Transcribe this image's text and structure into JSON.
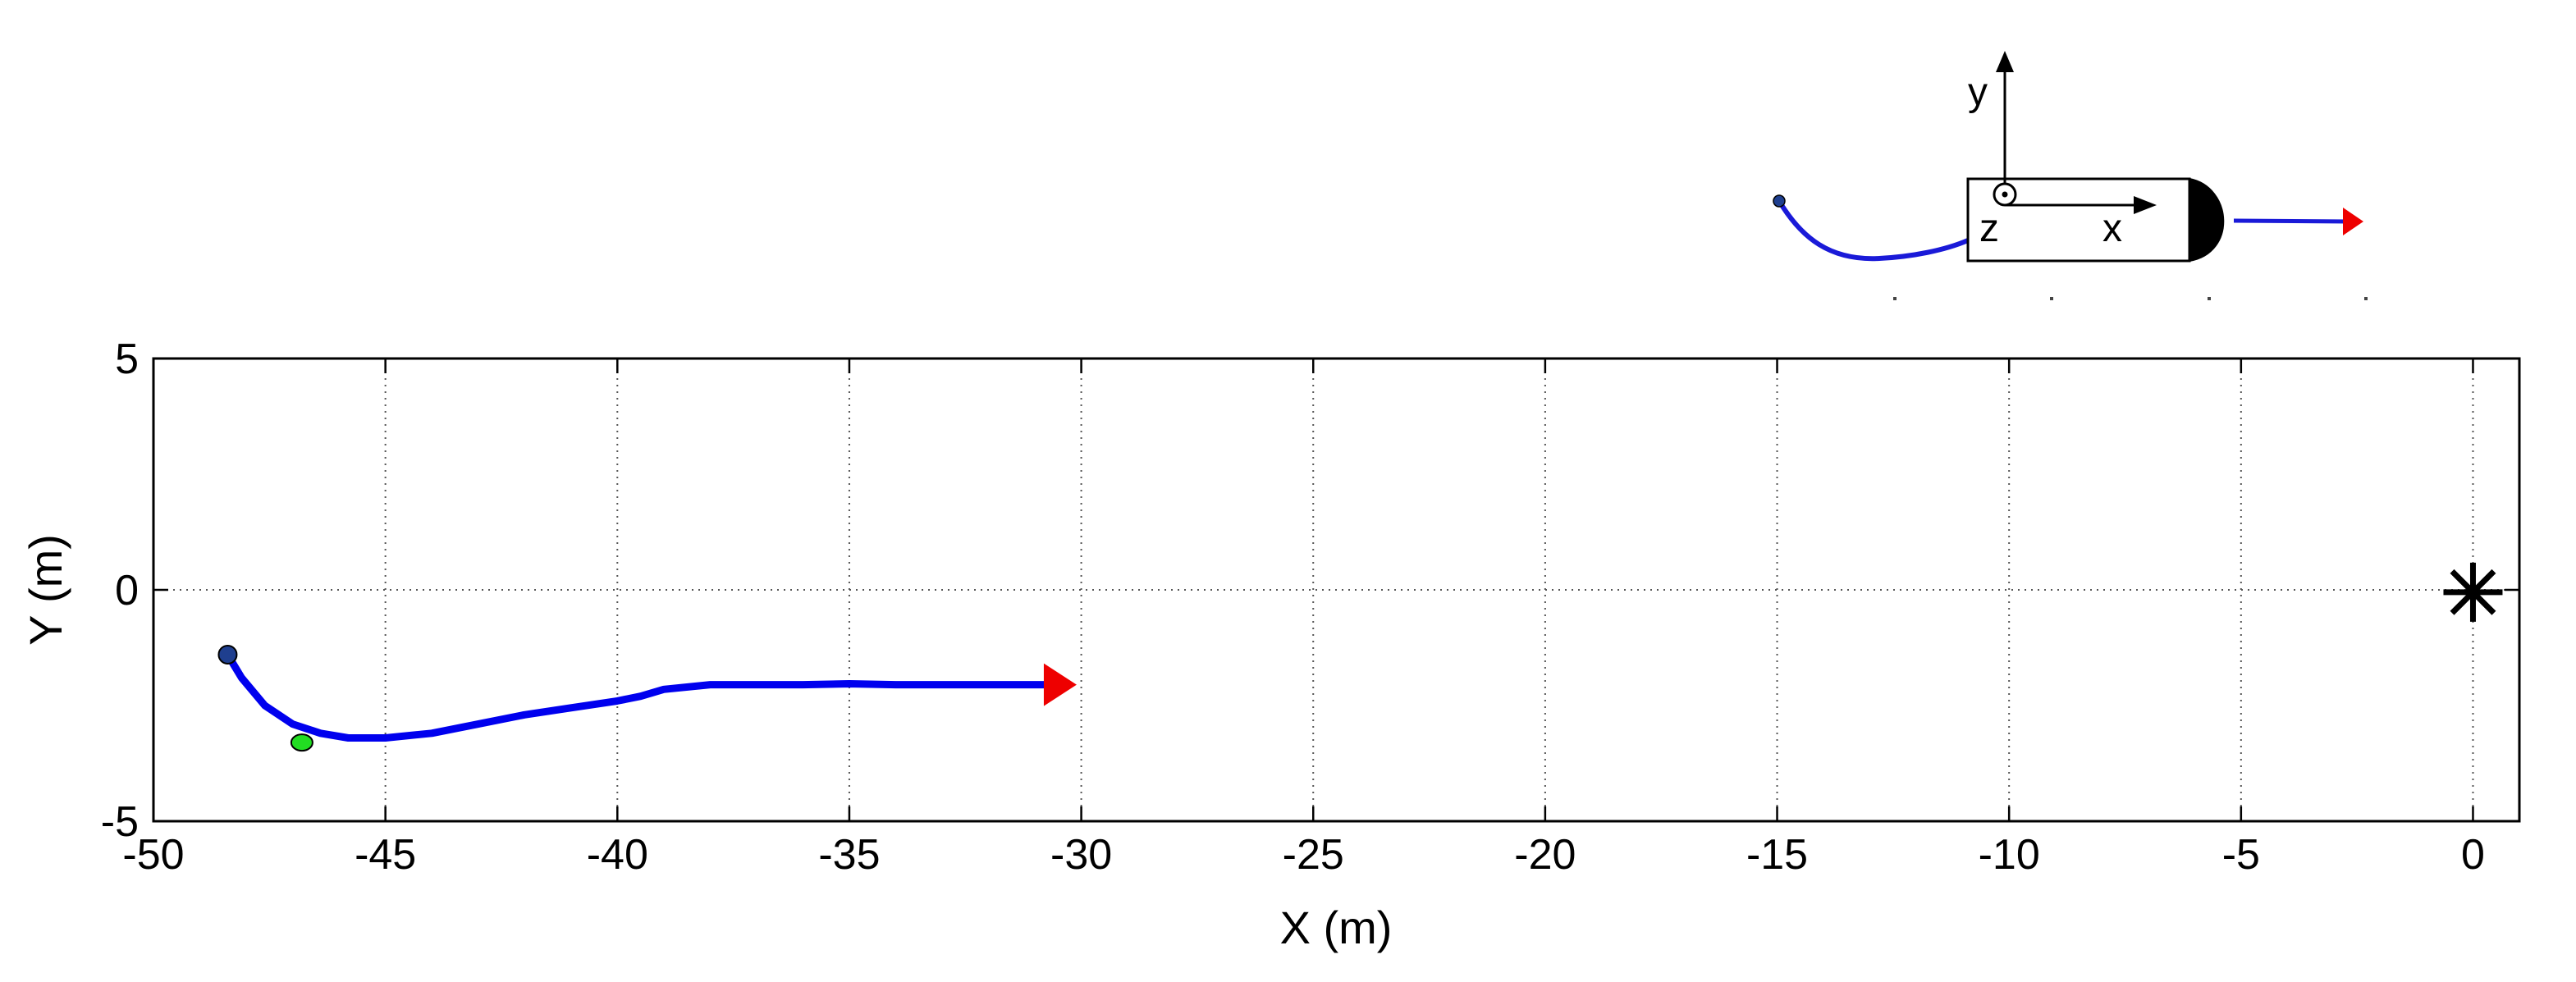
{
  "chart_data": {
    "type": "line",
    "xlabel": "X (m)",
    "ylabel": "Y (m)",
    "xlim": [
      -50,
      1
    ],
    "ylim": [
      -5,
      5
    ],
    "x_ticks": [
      -50,
      -45,
      -40,
      -35,
      -30,
      -25,
      -20,
      -15,
      -10,
      -5,
      0
    ],
    "y_ticks": [
      -5,
      0,
      5
    ],
    "x_tick_labels": [
      "-50",
      "-45",
      "-40",
      "-35",
      "-30",
      "-25",
      "-20",
      "-15",
      "-10",
      "-5",
      "0"
    ],
    "y_tick_labels": [
      "-5",
      "0",
      "5"
    ],
    "grid": true,
    "series": [
      {
        "color": "#0000ee",
        "x": [
          -48.4,
          -48.1,
          -47.6,
          -47.0,
          -46.4,
          -45.8,
          -45.0,
          -44.0,
          -43.0,
          -42.0,
          -41.0,
          -40.0,
          -39.5,
          -39.0,
          -38.0,
          -37.0,
          -36.0,
          -35.0,
          -34.0,
          -33.0,
          -32.0,
          -31.5,
          -30.6
        ],
        "y": [
          -1.4,
          -1.9,
          -2.5,
          -2.9,
          -3.1,
          -3.2,
          -3.2,
          -3.1,
          -2.9,
          -2.7,
          -2.55,
          -2.4,
          -2.3,
          -2.15,
          -2.05,
          -2.05,
          -2.05,
          -2.03,
          -2.05,
          -2.05,
          -2.05,
          -2.05,
          -2.05
        ]
      }
    ],
    "markers": [
      {
        "type": "start",
        "x": -48.4,
        "y": -1.4,
        "color": "#1f3f8f"
      },
      {
        "type": "intermediate",
        "x": -46.8,
        "y": -3.3,
        "color": "#22dd22"
      },
      {
        "type": "arrow-head",
        "x": -30.1,
        "y": -2.05,
        "color": "#ee0000"
      },
      {
        "type": "target",
        "x": 0,
        "y": -0.05,
        "color": "#000000"
      }
    ]
  },
  "inset": {
    "axis_y": "y",
    "axis_x": "x",
    "axis_z": "z"
  }
}
